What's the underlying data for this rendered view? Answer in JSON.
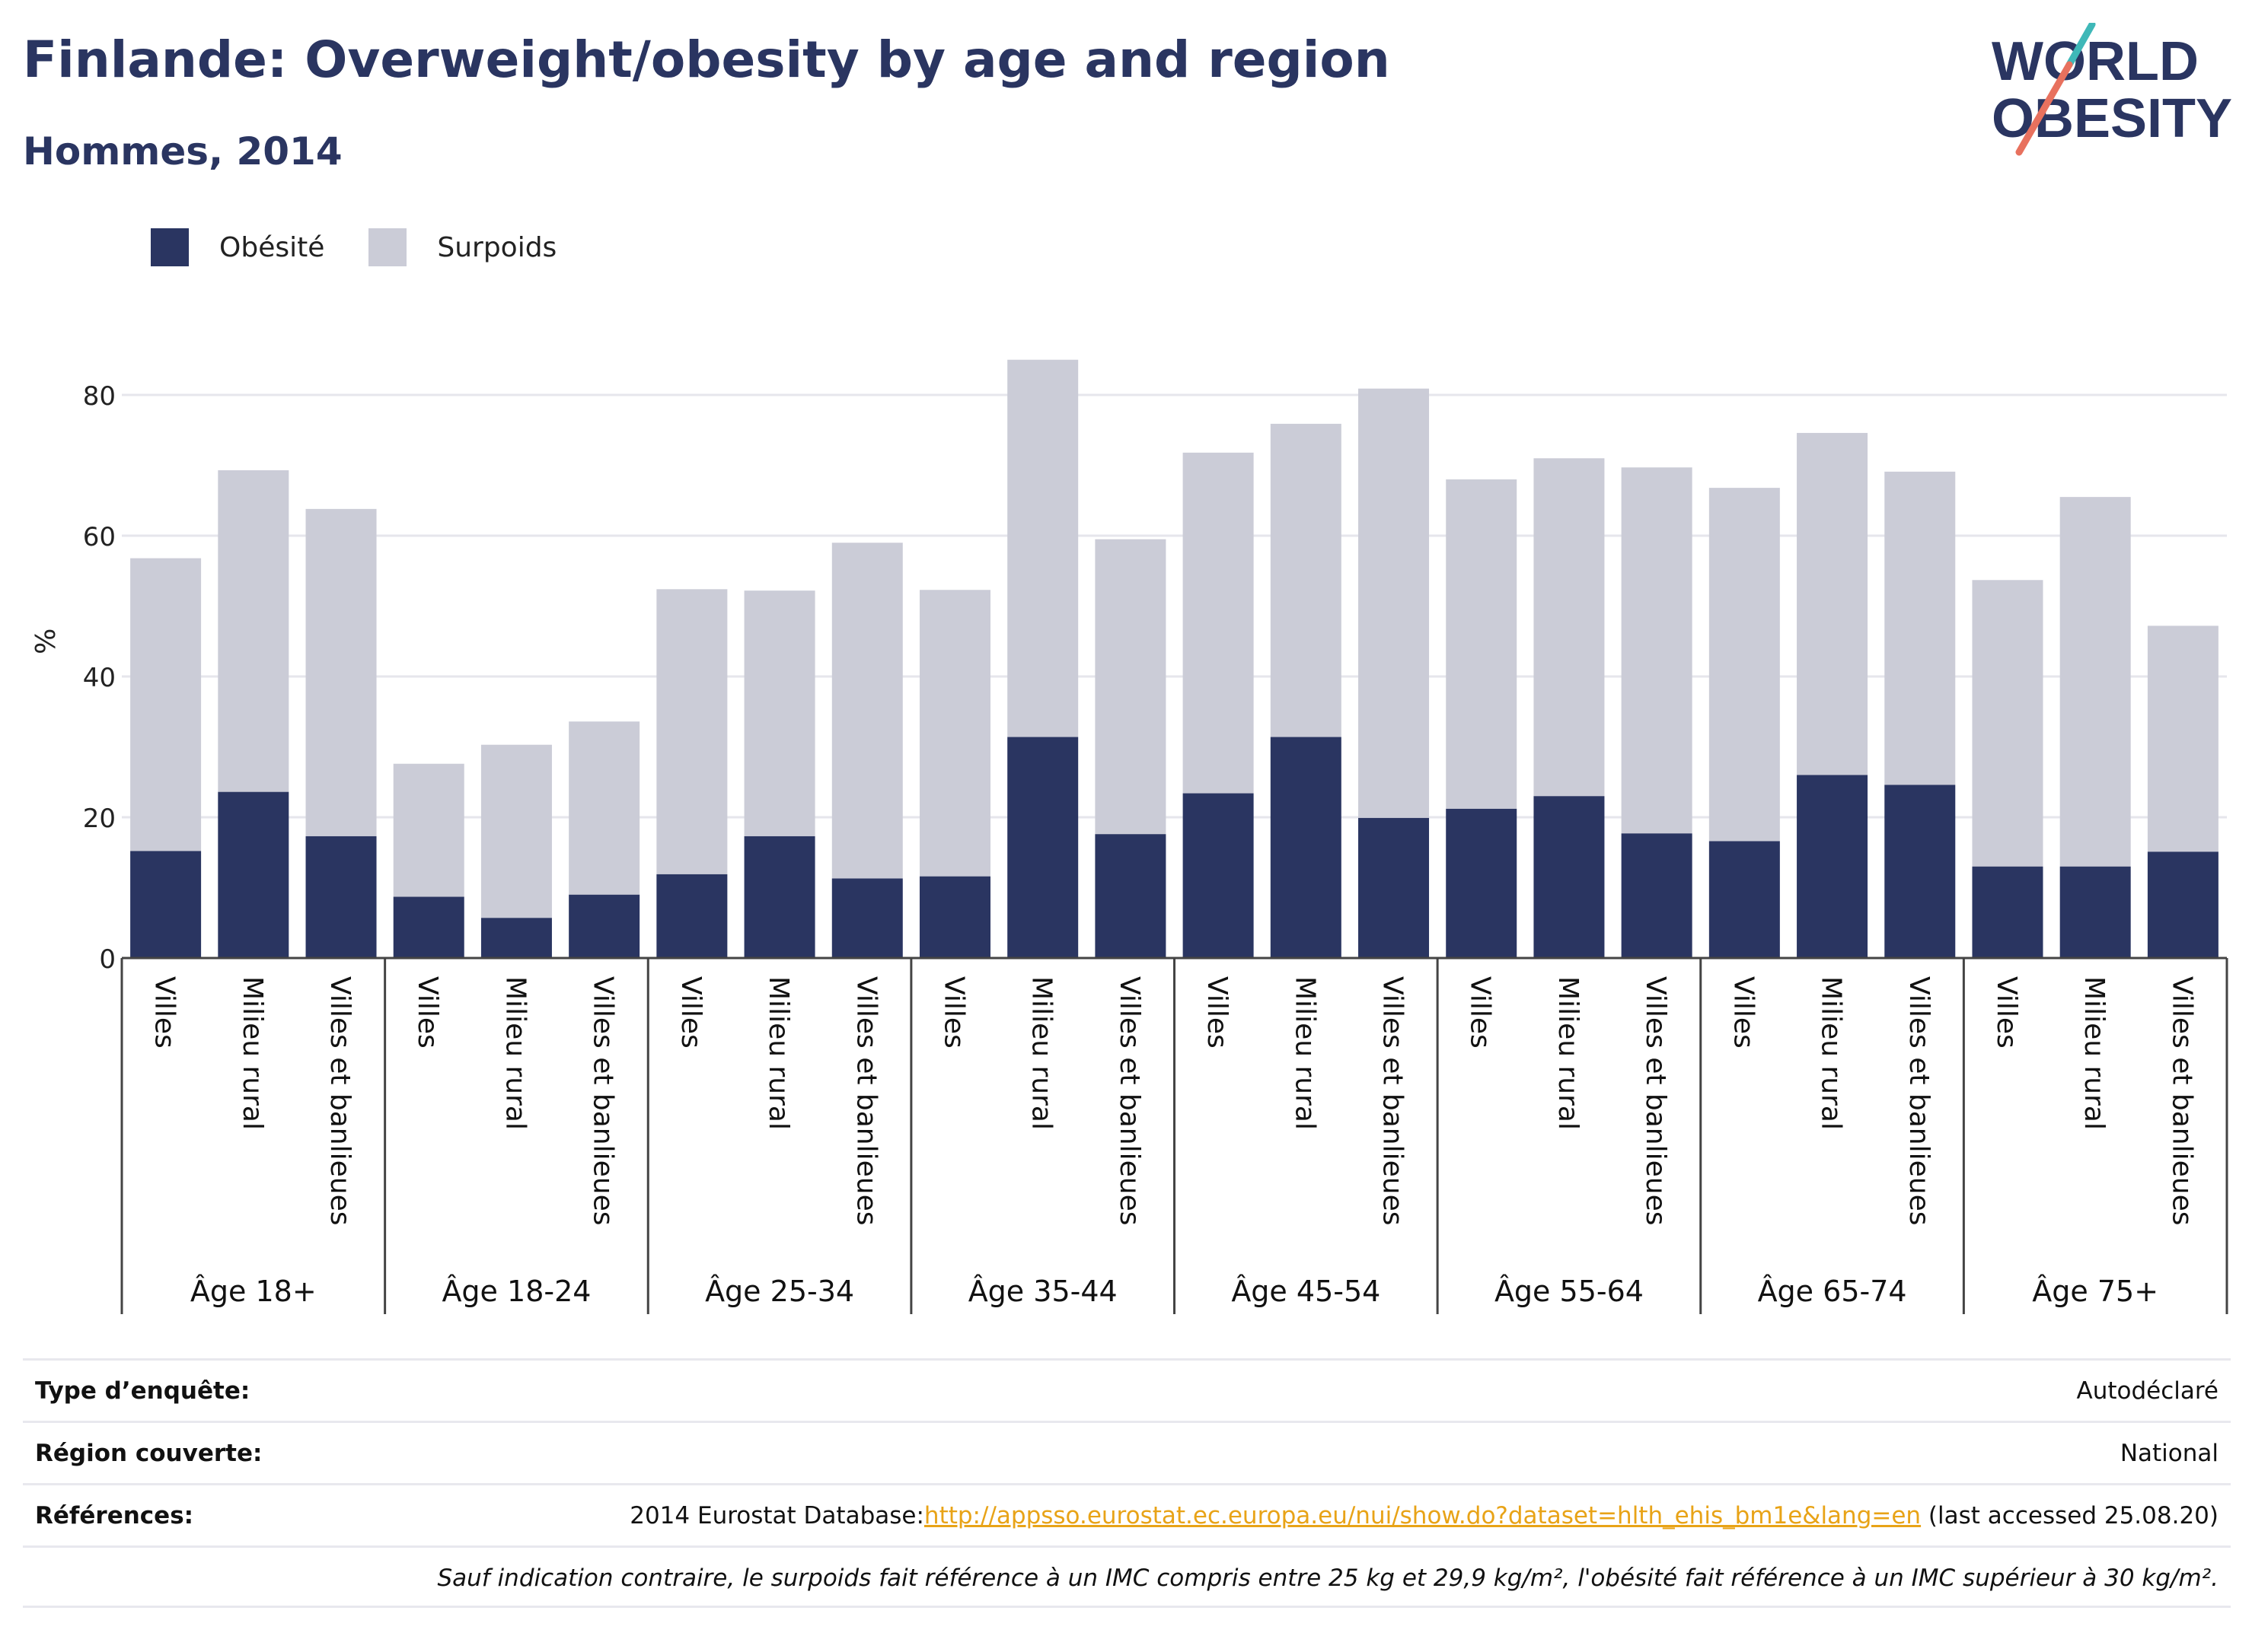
{
  "title": "Finlande: Overweight/obesity by age and region",
  "subtitle": "Hommes, 2014",
  "logo": {
    "line1": "WORLD",
    "line2": "OBESITY"
  },
  "colors": {
    "obese": "#2a3561",
    "overweight": "#cbccd7",
    "text": "#2a3561",
    "grid": "#e6e6ec",
    "link": "#e8a317"
  },
  "chart_data": {
    "type": "bar",
    "stacked": true,
    "title": "",
    "ylabel": "%",
    "ylim": [
      0,
      90
    ],
    "yticks": [
      0,
      20,
      40,
      60,
      80
    ],
    "grid": true,
    "legend_position": "top-left",
    "legend": [
      "Obésité",
      "Surpoids"
    ],
    "groups": [
      {
        "label": "Âge 18+",
        "categories": [
          "Villes",
          "Milieu rural",
          "Villes et banlieues"
        ],
        "obesity": [
          15.2,
          23.6,
          17.3
        ],
        "total": [
          56.8,
          69.3,
          63.8
        ]
      },
      {
        "label": "Âge 18-24",
        "categories": [
          "Villes",
          "Milieu rural",
          "Villes et banlieues"
        ],
        "obesity": [
          8.7,
          5.7,
          9.0
        ],
        "total": [
          27.6,
          30.3,
          33.6
        ]
      },
      {
        "label": "Âge 25-34",
        "categories": [
          "Villes",
          "Milieu rural",
          "Villes et banlieues"
        ],
        "obesity": [
          11.9,
          17.3,
          11.3
        ],
        "total": [
          52.4,
          52.2,
          59.0
        ]
      },
      {
        "label": "Âge 35-44",
        "categories": [
          "Villes",
          "Milieu rural",
          "Villes et banlieues"
        ],
        "obesity": [
          11.6,
          31.4,
          17.6
        ],
        "total": [
          52.3,
          85.0,
          59.5
        ]
      },
      {
        "label": "Âge 45-54",
        "categories": [
          "Villes",
          "Milieu rural",
          "Villes et banlieues"
        ],
        "obesity": [
          23.4,
          31.4,
          19.9
        ],
        "total": [
          71.8,
          75.9,
          80.9
        ]
      },
      {
        "label": "Âge 55-64",
        "categories": [
          "Villes",
          "Milieu rural",
          "Villes et banlieues"
        ],
        "obesity": [
          21.2,
          23.0,
          17.7
        ],
        "total": [
          68.0,
          71.0,
          69.7
        ]
      },
      {
        "label": "Âge 65-74",
        "categories": [
          "Villes",
          "Milieu rural",
          "Villes et banlieues"
        ],
        "obesity": [
          16.6,
          26.0,
          24.6
        ],
        "total": [
          66.8,
          74.6,
          69.1
        ]
      },
      {
        "label": "Âge 75+",
        "categories": [
          "Villes",
          "Milieu rural",
          "Villes et banlieues"
        ],
        "obesity": [
          13.0,
          13.0,
          15.1
        ],
        "total": [
          53.7,
          65.5,
          47.2
        ]
      }
    ]
  },
  "info": {
    "survey_type": {
      "label": "Type d’enquête:",
      "value": "Autodéclaré"
    },
    "region": {
      "label": "Région couverte:",
      "value": "National"
    },
    "references": {
      "label": "Références:",
      "prefix": "2014 Eurostat Database:",
      "link": "http://appsso.eurostat.ec.europa.eu/nui/show.do?dataset=hlth_ehis_bm1e&lang=en",
      "suffix": " (last accessed 25.08.20)"
    },
    "note": "Sauf indication contraire, le surpoids fait référence à un IMC compris entre 25 kg et 29,9 kg/m², l'obésité fait référence à un IMC supérieur à 30 kg/m²."
  }
}
